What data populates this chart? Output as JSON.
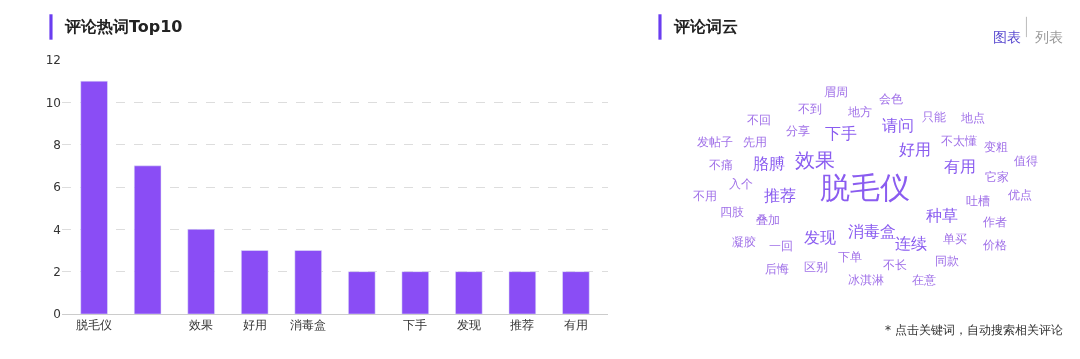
{
  "chart_data": [
    {
      "type": "bar",
      "title": "评论热词Top10",
      "categories": [
        "脱毛仪",
        null,
        "效果",
        "好用",
        "消毒盒",
        null,
        "下手",
        "发现",
        "推荐",
        "有用"
      ],
      "values": [
        11,
        7,
        4,
        3,
        3,
        2,
        2,
        2,
        2,
        2
      ],
      "color": "#8a4df5",
      "ylim": [
        0,
        12
      ],
      "yticks": [
        0,
        2,
        4,
        6,
        8,
        10,
        12
      ],
      "grid": "y"
    },
    {
      "type": "other",
      "title": "评论词云",
      "annotations": [
        "脱毛仪",
        "效果",
        "消毒盒",
        "好用",
        "推荐",
        "种草",
        "下手",
        "发现",
        "有用",
        "胳膊",
        "连续",
        "请问",
        "叠加",
        "吐槽",
        "分享",
        "下单",
        "不太懂",
        "入个",
        "单买",
        "地方",
        "一回",
        "它家",
        "先用",
        "不长",
        "只能",
        "四肢",
        "作者",
        "不到",
        "区别",
        "变粗",
        "不痛",
        "同款",
        "会色",
        "凝胶",
        "优点",
        "不回",
        "冰淇淋",
        "地点",
        "不用",
        "价格",
        "眉周",
        "后悔",
        "值得",
        "发帖子",
        "在意",
        "图表",
        "列表",
        "* 点击关键词，自动搜索相关评论"
      ]
    }
  ]
}
